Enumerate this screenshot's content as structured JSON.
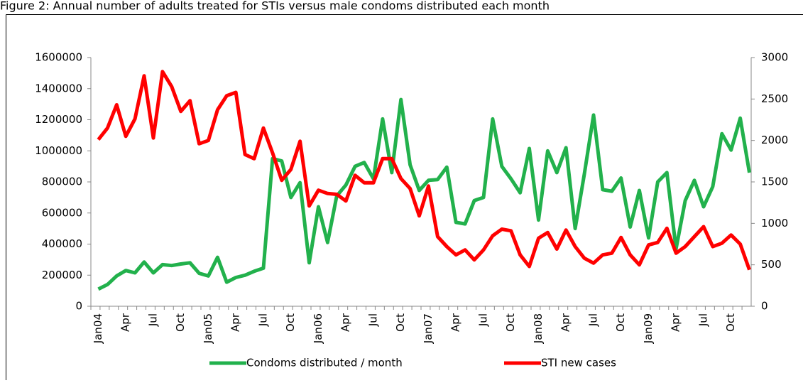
{
  "chart_data": {
    "type": "line",
    "title": "Figure 2: Annual number of adults treated for STIs versus male condoms distributed each month",
    "categories": [
      "Jan04",
      null,
      null,
      "Apr",
      null,
      null,
      "Jul",
      null,
      null,
      "Oct",
      null,
      null,
      "Jan05",
      null,
      null,
      "Apr",
      null,
      null,
      "Jul",
      null,
      null,
      "Oct",
      null,
      null,
      "Jan06",
      null,
      null,
      "Apr",
      null,
      null,
      "Jul",
      null,
      null,
      "Oct",
      null,
      null,
      "Jan07",
      null,
      null,
      "Apr",
      null,
      null,
      "Jul",
      null,
      null,
      "Oct",
      null,
      null,
      "Jan08",
      null,
      null,
      "Apr",
      null,
      null,
      "Jul",
      null,
      null,
      "Oct",
      null,
      null,
      "Jan09",
      null,
      null,
      "Apr",
      null,
      null,
      "Jul",
      null,
      null,
      "Oct",
      null,
      null
    ],
    "series": [
      {
        "name": "Condoms distributed / month",
        "color": "#22b14c",
        "values": [
          110000,
          140000,
          195000,
          230000,
          215000,
          285000,
          215000,
          268000,
          262000,
          272000,
          280000,
          212000,
          195000,
          315000,
          155000,
          185000,
          200000,
          225000,
          245000,
          950000,
          935000,
          700000,
          795000,
          280000,
          640000,
          410000,
          710000,
          780000,
          900000,
          925000,
          820000,
          1205000,
          860000,
          1330000,
          910000,
          745000,
          810000,
          815000,
          895000,
          540000,
          530000,
          680000,
          700000,
          1205000,
          900000,
          820000,
          730000,
          1015000,
          555000,
          1000000,
          860000,
          1020000,
          500000,
          850000,
          1230000,
          750000,
          740000,
          825000,
          510000,
          745000,
          440000,
          800000,
          860000,
          370000,
          680000,
          810000,
          640000,
          770000,
          1110000,
          1005000,
          1210000,
          860000
        ]
      },
      {
        "name": "STI new cases",
        "color": "#ff0000",
        "axis": "y2",
        "values": [
          2010,
          2150,
          2430,
          2050,
          2260,
          2780,
          2030,
          2830,
          2650,
          2350,
          2480,
          1960,
          2000,
          2370,
          2540,
          2580,
          1830,
          1780,
          2150,
          1850,
          1520,
          1650,
          1990,
          1210,
          1400,
          1360,
          1350,
          1270,
          1580,
          1490,
          1490,
          1780,
          1780,
          1540,
          1420,
          1090,
          1450,
          840,
          720,
          620,
          680,
          560,
          680,
          850,
          930,
          910,
          620,
          480,
          820,
          890,
          690,
          920,
          720,
          580,
          520,
          620,
          640,
          830,
          620,
          500,
          740,
          770,
          940,
          640,
          720,
          840,
          960,
          720,
          760,
          860,
          750,
          440
        ]
      }
    ],
    "ylim": [
      0,
      1600000
    ],
    "yticks": [
      0,
      200000,
      400000,
      600000,
      800000,
      1000000,
      1200000,
      1400000,
      1600000
    ],
    "y2lim": [
      0,
      3000
    ],
    "y2ticks": [
      0,
      500,
      1000,
      1500,
      2000,
      2500,
      3000
    ],
    "legend": "bottom"
  }
}
